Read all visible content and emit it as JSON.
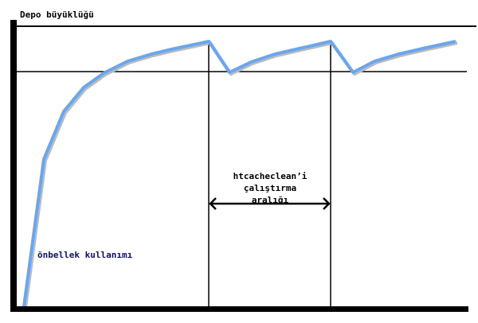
{
  "diagram": {
    "y_axis_label": "Depo büyüklüğü",
    "curve_label": "önbellek kullanımı",
    "interval_label": [
      "htcacheclean’i",
      "çalıştırma",
      "aralığı"
    ],
    "colors": {
      "curve": "#6aa6ee",
      "axes": "#000000"
    }
  }
}
